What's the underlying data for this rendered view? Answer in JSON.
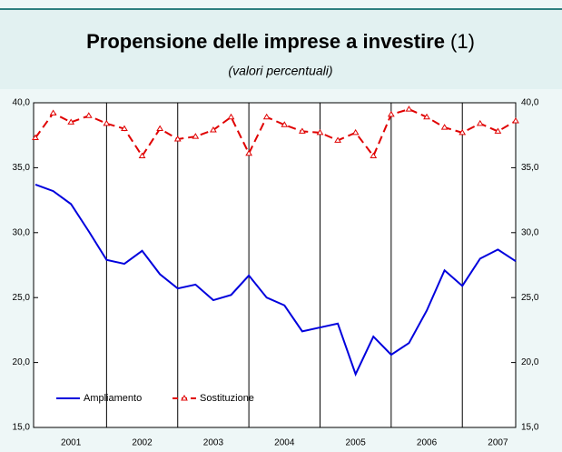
{
  "chart_data": {
    "type": "line",
    "title": "Propensione delle imprese a investire",
    "title_note": "(1)",
    "subtitle": "(valori percentuali)",
    "categories": [
      null,
      null,
      "2001",
      null,
      null,
      null,
      "2002",
      null,
      null,
      null,
      "2003",
      null,
      null,
      null,
      "2004",
      null,
      null,
      null,
      "2005",
      null,
      null,
      null,
      "2006",
      null,
      null,
      null,
      "2007",
      null
    ],
    "series": [
      {
        "name": "Ampliamento",
        "color": "#0000dd",
        "values": [
          33.7,
          33.2,
          32.2,
          30.1,
          27.9,
          27.6,
          28.6,
          26.8,
          25.7,
          26.0,
          24.8,
          25.2,
          26.7,
          25.0,
          24.4,
          22.4,
          22.7,
          23.0,
          19.1,
          22.0,
          20.6,
          21.5,
          24.0,
          27.1,
          25.9,
          28.0,
          28.7,
          27.8
        ]
      },
      {
        "name": "Sostituzione",
        "color": "#e00000",
        "values": [
          37.3,
          39.2,
          38.5,
          39.0,
          38.4,
          38.0,
          35.9,
          38.0,
          37.2,
          37.4,
          37.9,
          38.9,
          36.1,
          38.9,
          38.3,
          37.8,
          37.7,
          37.1,
          37.7,
          35.9,
          39.1,
          39.5,
          38.9,
          38.1,
          37.7,
          38.4,
          37.8,
          38.6
        ],
        "axis": "y2"
      }
    ],
    "ylim": [
      15,
      40
    ],
    "yticks": [
      {
        "value": 15,
        "label": "15,0"
      },
      {
        "value": 20,
        "label": "20,0"
      },
      {
        "value": 25,
        "label": "25,0"
      },
      {
        "value": 30,
        "label": "30,0"
      },
      {
        "value": 35,
        "label": "35,0"
      },
      {
        "value": 40,
        "label": "40,0"
      }
    ],
    "y2lim": [
      15,
      40
    ],
    "y2ticks": [
      {
        "value": 15,
        "label": "15,0"
      },
      {
        "value": 20,
        "label": "20,0"
      },
      {
        "value": 25,
        "label": "25,0"
      },
      {
        "value": 30,
        "label": "30,0"
      },
      {
        "value": 35,
        "label": "35,0"
      },
      {
        "value": 40,
        "label": "40,0"
      }
    ],
    "grid": false,
    "legend": "lower left"
  }
}
